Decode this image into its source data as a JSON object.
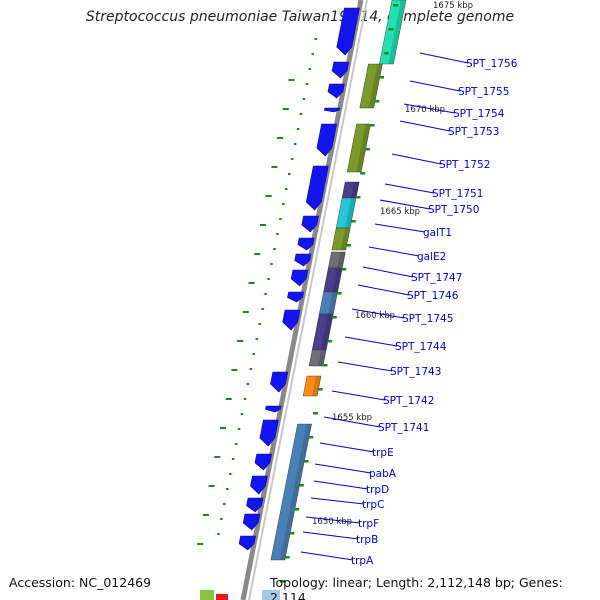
{
  "title": "Streptococcus pneumoniae Taiwan19F-14, complete genome",
  "accession": "Accession: NC_012469",
  "summary": "Topology: linear; Length: 2,112,148 bp; Genes: 2,114",
  "kbp_labels": [
    "1675 kbp",
    "1670 kbp",
    "1665 kbp",
    "1660 kbp",
    "1655 kbp",
    "1650 kbp"
  ],
  "genes": [
    {
      "name": "SPT_1756"
    },
    {
      "name": "SPT_1755"
    },
    {
      "name": "SPT_1754"
    },
    {
      "name": "SPT_1753"
    },
    {
      "name": "SPT_1752"
    },
    {
      "name": "SPT_1751"
    },
    {
      "name": "SPT_1750"
    },
    {
      "name": "galT1"
    },
    {
      "name": "galE2"
    },
    {
      "name": "SPT_1747"
    },
    {
      "name": "SPT_1746"
    },
    {
      "name": "SPT_1745"
    },
    {
      "name": "SPT_1744"
    },
    {
      "name": "SPT_1743"
    },
    {
      "name": "SPT_1742"
    },
    {
      "name": "SPT_1741"
    },
    {
      "name": "trpE"
    },
    {
      "name": "pabA"
    },
    {
      "name": "trpD"
    },
    {
      "name": "trpC"
    },
    {
      "name": "trpF"
    },
    {
      "name": "trpB"
    },
    {
      "name": "trpA"
    }
  ],
  "colors": {
    "gene_arrow": "#1414ee",
    "backbone": "#8a8a8a",
    "tick": "#1a8a1a",
    "label": "#0000cc",
    "cog_teal": "#22e0b0",
    "cog_olive": "#7a9a2a",
    "cog_purple": "#4a3d8a",
    "cog_cyan": "#22c8d8",
    "cog_gray": "#6e6e78",
    "cog_steel": "#4a80b8",
    "cog_orange": "#ff8c10"
  }
}
